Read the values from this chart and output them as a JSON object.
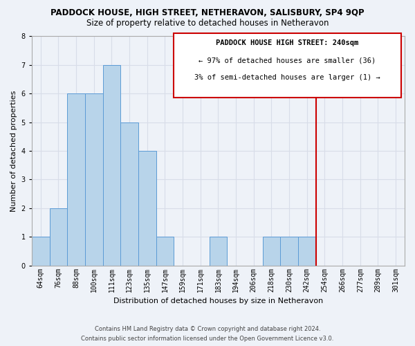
{
  "title": "PADDOCK HOUSE, HIGH STREET, NETHERAVON, SALISBURY, SP4 9QP",
  "subtitle": "Size of property relative to detached houses in Netheravon",
  "xlabel": "Distribution of detached houses by size in Netheravon",
  "ylabel": "Number of detached properties",
  "bin_labels": [
    "64sqm",
    "76sqm",
    "88sqm",
    "100sqm",
    "111sqm",
    "123sqm",
    "135sqm",
    "147sqm",
    "159sqm",
    "171sqm",
    "183sqm",
    "194sqm",
    "206sqm",
    "218sqm",
    "230sqm",
    "242sqm",
    "254sqm",
    "266sqm",
    "277sqm",
    "289sqm",
    "301sqm"
  ],
  "bar_heights": [
    1,
    2,
    6,
    6,
    7,
    5,
    4,
    1,
    0,
    0,
    1,
    0,
    0,
    1,
    1,
    1,
    0,
    0,
    0,
    0,
    0
  ],
  "bar_color": "#b8d4ea",
  "bar_edge_color": "#5b9bd5",
  "highlight_line_color": "#cc0000",
  "highlight_bin_index": 15,
  "ylim": [
    0,
    8
  ],
  "yticks": [
    0,
    1,
    2,
    3,
    4,
    5,
    6,
    7,
    8
  ],
  "annotation_title": "PADDOCK HOUSE HIGH STREET: 240sqm",
  "annotation_line1": "← 97% of detached houses are smaller (36)",
  "annotation_line2": "3% of semi-detached houses are larger (1) →",
  "annotation_box_color": "#ffffff",
  "annotation_border_color": "#cc0000",
  "footer_line1": "Contains HM Land Registry data © Crown copyright and database right 2024.",
  "footer_line2": "Contains public sector information licensed under the Open Government Licence v3.0.",
  "background_color": "#eef2f8",
  "grid_color": "#d8dde8",
  "title_fontsize": 8.5,
  "subtitle_fontsize": 8.5,
  "axis_label_fontsize": 8,
  "tick_fontsize": 7,
  "ylabel_fontsize": 8,
  "footer_fontsize": 6
}
